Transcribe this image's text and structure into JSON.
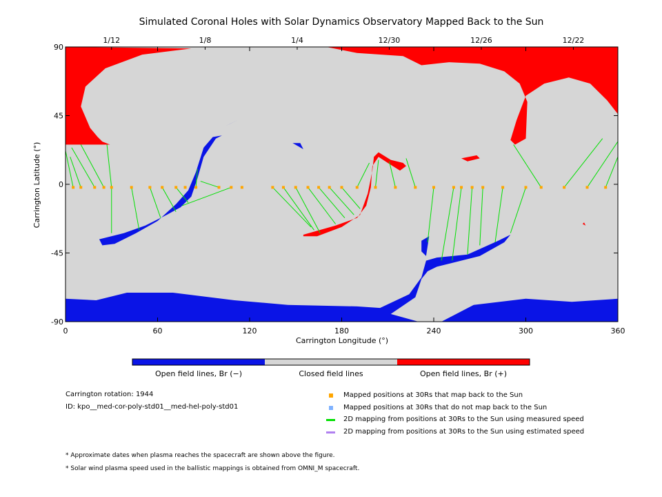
{
  "chart_data": {
    "type": "heatmap",
    "title": "Simulated Coronal Holes with Solar Dynamics Observatory Mapped Back to the Sun",
    "xlabel": "Carrington Longitude (°)",
    "ylabel": "Carrington Latitude (°)",
    "xlim": [
      0,
      360
    ],
    "ylim": [
      -90,
      90
    ],
    "x_ticks": [
      0,
      60,
      120,
      180,
      240,
      300,
      360
    ],
    "y_ticks": [
      90,
      45,
      0,
      -45,
      -90
    ],
    "y_tick_labels": [
      "90",
      "45",
      "0",
      "-45",
      "-90"
    ],
    "top_axis_dates": [
      {
        "label": "1/12",
        "lon": 30
      },
      {
        "label": "1/8",
        "lon": 91
      },
      {
        "label": "1/4",
        "lon": 151
      },
      {
        "label": "12/30",
        "lon": 211
      },
      {
        "label": "12/26",
        "lon": 271
      },
      {
        "label": "12/22",
        "lon": 331
      }
    ],
    "colorbar": {
      "labels": [
        "Open field lines, Br (−)",
        "Closed field lines",
        "Open field lines, Br (+)"
      ],
      "colors": [
        "#0a14e6",
        "#d6d6d6",
        "#ff0000"
      ]
    },
    "regions": {
      "closed_color": "#d6d6d6",
      "positive_color": "#ff0000",
      "negative_color": "#0a14e6",
      "positive": [
        [
          [
            0,
            90
          ],
          [
            82,
            89
          ],
          [
            50,
            85
          ],
          [
            26,
            76
          ],
          [
            13,
            64
          ],
          [
            10,
            51
          ],
          [
            16,
            37
          ],
          [
            21,
            31
          ],
          [
            24,
            28
          ],
          [
            29,
            26
          ],
          [
            0,
            26
          ]
        ],
        [
          [
            170,
            90
          ],
          [
            360,
            90
          ],
          [
            360,
            46
          ],
          [
            353,
            55
          ],
          [
            342,
            66
          ],
          [
            328,
            70
          ],
          [
            312,
            66
          ],
          [
            300,
            58
          ],
          [
            294,
            42
          ],
          [
            290,
            29
          ],
          [
            293,
            26
          ],
          [
            300,
            30
          ],
          [
            301,
            54
          ],
          [
            296,
            66
          ],
          [
            286,
            74
          ],
          [
            270,
            79
          ],
          [
            250,
            80
          ],
          [
            232,
            78
          ],
          [
            220,
            84
          ],
          [
            190,
            86
          ]
        ],
        [
          [
            155,
            -33
          ],
          [
            176,
            -27
          ],
          [
            190,
            -22
          ],
          [
            196,
            -14
          ],
          [
            199,
            -2
          ],
          [
            200,
            12
          ],
          [
            204,
            18
          ],
          [
            210,
            14
          ],
          [
            218,
            9
          ],
          [
            222,
            12
          ],
          [
            220,
            14
          ],
          [
            212,
            16
          ],
          [
            204,
            21
          ],
          [
            201,
            18
          ],
          [
            200,
            9
          ],
          [
            197,
            -6
          ],
          [
            192,
            -20
          ],
          [
            180,
            -28
          ],
          [
            164,
            -34
          ],
          [
            155,
            -34
          ]
        ],
        [
          [
            258,
            17
          ],
          [
            268,
            19
          ],
          [
            270,
            17
          ],
          [
            262,
            15
          ]
        ],
        [
          [
            337,
            -26
          ],
          [
            339,
            -27
          ],
          [
            338,
            -25
          ]
        ]
      ],
      "negative": [
        [
          [
            0,
            -75
          ],
          [
            20,
            -76
          ],
          [
            40,
            -71
          ],
          [
            70,
            -71
          ],
          [
            110,
            -76
          ],
          [
            145,
            -79
          ],
          [
            190,
            -80
          ],
          [
            205,
            -81
          ],
          [
            224,
            -72
          ],
          [
            232,
            -61
          ],
          [
            235,
            -50
          ],
          [
            242,
            -48
          ],
          [
            262,
            -46
          ],
          [
            282,
            -37
          ],
          [
            290,
            -33
          ],
          [
            286,
            -38
          ],
          [
            270,
            -47
          ],
          [
            250,
            -52
          ],
          [
            242,
            -54
          ],
          [
            236,
            -57
          ],
          [
            232,
            -62
          ],
          [
            228,
            -74
          ],
          [
            212,
            -85
          ],
          [
            230,
            -90
          ],
          [
            0,
            -90
          ]
        ],
        [
          [
            245,
            -90
          ],
          [
            266,
            -79
          ],
          [
            300,
            -75
          ],
          [
            330,
            -77
          ],
          [
            360,
            -75
          ],
          [
            360,
            -90
          ]
        ],
        [
          [
            22,
            -36
          ],
          [
            38,
            -32
          ],
          [
            52,
            -27
          ],
          [
            66,
            -20
          ],
          [
            75,
            -15
          ],
          [
            82,
            -8
          ],
          [
            86,
            4
          ],
          [
            90,
            18
          ],
          [
            98,
            30
          ],
          [
            102,
            32
          ],
          [
            96,
            31
          ],
          [
            90,
            24
          ],
          [
            85,
            8
          ],
          [
            80,
            -4
          ],
          [
            72,
            -13
          ],
          [
            60,
            -24
          ],
          [
            46,
            -32
          ],
          [
            32,
            -39
          ],
          [
            24,
            -40
          ]
        ],
        [
          [
            232,
            -37
          ],
          [
            237,
            -34
          ],
          [
            235,
            -47
          ],
          [
            232,
            -44
          ]
        ],
        [
          [
            148,
            27
          ],
          [
            155,
            23
          ],
          [
            153,
            27
          ]
        ],
        [
          [
            104,
            38
          ],
          [
            112,
            42
          ],
          [
            108,
            40
          ]
        ]
      ]
    },
    "mapped_points": [
      {
        "lon": 5,
        "lat": -2
      },
      {
        "lon": 10,
        "lat": -2
      },
      {
        "lon": 19,
        "lat": -2
      },
      {
        "lon": 25,
        "lat": -2
      },
      {
        "lon": 30,
        "lat": -2
      },
      {
        "lon": 43,
        "lat": -2
      },
      {
        "lon": 55,
        "lat": -2
      },
      {
        "lon": 63,
        "lat": -2
      },
      {
        "lon": 72,
        "lat": -2
      },
      {
        "lon": 78,
        "lat": -2
      },
      {
        "lon": 85,
        "lat": -2
      },
      {
        "lon": 100,
        "lat": -2
      },
      {
        "lon": 108,
        "lat": -2
      },
      {
        "lon": 115,
        "lat": -2
      },
      {
        "lon": 135,
        "lat": -2
      },
      {
        "lon": 142,
        "lat": -2
      },
      {
        "lon": 150,
        "lat": -2
      },
      {
        "lon": 158,
        "lat": -2
      },
      {
        "lon": 165,
        "lat": -2
      },
      {
        "lon": 172,
        "lat": -2
      },
      {
        "lon": 180,
        "lat": -2
      },
      {
        "lon": 190,
        "lat": -2
      },
      {
        "lon": 202,
        "lat": -2
      },
      {
        "lon": 215,
        "lat": -2
      },
      {
        "lon": 228,
        "lat": -2
      },
      {
        "lon": 240,
        "lat": -2
      },
      {
        "lon": 253,
        "lat": -2
      },
      {
        "lon": 258,
        "lat": -2
      },
      {
        "lon": 265,
        "lat": -2
      },
      {
        "lon": 272,
        "lat": -2
      },
      {
        "lon": 285,
        "lat": -2
      },
      {
        "lon": 300,
        "lat": -2
      },
      {
        "lon": 310,
        "lat": -2
      },
      {
        "lon": 325,
        "lat": -2
      },
      {
        "lon": 340,
        "lat": -2
      },
      {
        "lon": 352,
        "lat": -2
      }
    ],
    "mapping_lines": [
      {
        "from": [
          5,
          -2
        ],
        "to": [
          0,
          22
        ]
      },
      {
        "from": [
          10,
          -2
        ],
        "to": [
          3,
          18
        ]
      },
      {
        "from": [
          19,
          -2
        ],
        "to": [
          4,
          24
        ]
      },
      {
        "from": [
          25,
          -2
        ],
        "to": [
          10,
          26
        ]
      },
      {
        "from": [
          30,
          -2
        ],
        "to": [
          27,
          26
        ]
      },
      {
        "from": [
          30,
          -2
        ],
        "to": [
          30,
          -32
        ]
      },
      {
        "from": [
          43,
          -2
        ],
        "to": [
          48,
          -30
        ]
      },
      {
        "from": [
          55,
          -2
        ],
        "to": [
          62,
          -22
        ]
      },
      {
        "from": [
          63,
          -2
        ],
        "to": [
          72,
          -18
        ]
      },
      {
        "from": [
          72,
          -2
        ],
        "to": [
          80,
          -12
        ]
      },
      {
        "from": [
          85,
          -2
        ],
        "to": [
          86,
          10
        ]
      },
      {
        "from": [
          100,
          -2
        ],
        "to": [
          88,
          2
        ]
      },
      {
        "from": [
          108,
          -2
        ],
        "to": [
          76,
          -14
        ]
      },
      {
        "from": [
          135,
          -2
        ],
        "to": [
          160,
          -28
        ]
      },
      {
        "from": [
          142,
          -2
        ],
        "to": [
          162,
          -30
        ]
      },
      {
        "from": [
          150,
          -2
        ],
        "to": [
          166,
          -32
        ]
      },
      {
        "from": [
          158,
          -2
        ],
        "to": [
          176,
          -26
        ]
      },
      {
        "from": [
          165,
          -2
        ],
        "to": [
          182,
          -22
        ]
      },
      {
        "from": [
          172,
          -2
        ],
        "to": [
          188,
          -20
        ]
      },
      {
        "from": [
          180,
          -2
        ],
        "to": [
          192,
          -16
        ]
      },
      {
        "from": [
          190,
          -2
        ],
        "to": [
          198,
          14
        ]
      },
      {
        "from": [
          202,
          -2
        ],
        "to": [
          204,
          16
        ]
      },
      {
        "from": [
          215,
          -2
        ],
        "to": [
          211,
          15
        ]
      },
      {
        "from": [
          228,
          -2
        ],
        "to": [
          222,
          17
        ]
      },
      {
        "from": [
          240,
          -2
        ],
        "to": [
          236,
          -38
        ]
      },
      {
        "from": [
          253,
          -2
        ],
        "to": [
          245,
          -50
        ]
      },
      {
        "from": [
          258,
          -2
        ],
        "to": [
          252,
          -50
        ]
      },
      {
        "from": [
          265,
          -2
        ],
        "to": [
          262,
          -46
        ]
      },
      {
        "from": [
          272,
          -2
        ],
        "to": [
          270,
          -40
        ]
      },
      {
        "from": [
          285,
          -2
        ],
        "to": [
          280,
          -38
        ]
      },
      {
        "from": [
          300,
          -2
        ],
        "to": [
          290,
          -32
        ]
      },
      {
        "from": [
          310,
          -2
        ],
        "to": [
          292,
          26
        ]
      },
      {
        "from": [
          325,
          -2
        ],
        "to": [
          350,
          30
        ]
      },
      {
        "from": [
          340,
          -2
        ],
        "to": [
          360,
          28
        ]
      },
      {
        "from": [
          352,
          -2
        ],
        "to": [
          360,
          18
        ]
      }
    ],
    "info": {
      "rotation": "Carrington rotation: 1944",
      "id": "ID: kpo__med-cor-poly-std01__med-hel-poly-std01"
    },
    "legend": [
      {
        "label": "Mapped positions at 30Rs that map back to the Sun",
        "color": "#ffa500",
        "marker": "square"
      },
      {
        "label": "Mapped positions at 30Rs that do not map back to the Sun",
        "color": "#7fb2ff",
        "marker": "square"
      },
      {
        "label": "2D mapping from positions at 30Rs to the Sun using measured speed",
        "color": "#00e000",
        "marker": "line"
      },
      {
        "label": "2D mapping from positions at 30Rs to the Sun using estimated speed",
        "color": "#b080f0",
        "marker": "line"
      }
    ],
    "footnotes": [
      "* Approximate dates when plasma reaches the spacecraft are shown above the figure.",
      "* Solar wind plasma speed used in the ballistic mappings is obtained from OMNI_M spacecraft."
    ]
  }
}
